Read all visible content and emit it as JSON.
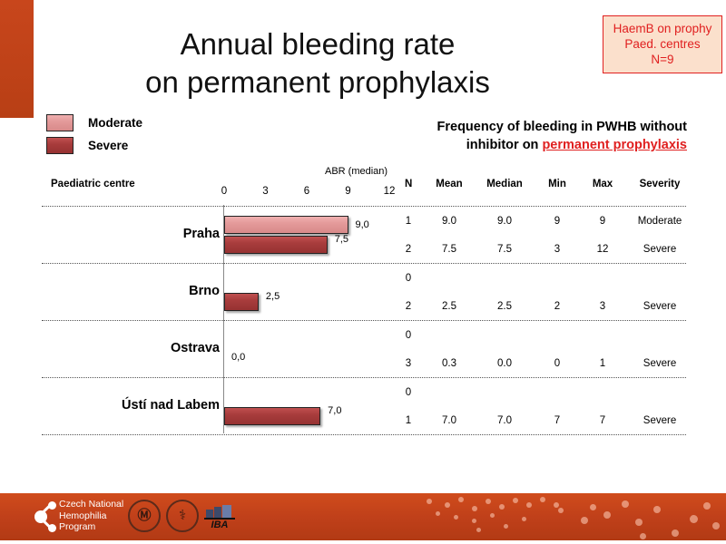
{
  "slide": {
    "title_line1": "Annual bleeding rate",
    "title_line2": "on permanent prophylaxis",
    "info_box": [
      "HaemB on prophy",
      "Paed. centres",
      "N=9"
    ],
    "subtitle_line1": "Frequency of bleeding in PWHB without",
    "subtitle_prefix": "inhibitor on ",
    "subtitle_highlight": "permanent prophylaxis",
    "accent_color": "#c8461c",
    "highlight_color": "#e02020"
  },
  "legend": [
    {
      "label": "Moderate",
      "color": "#e49a9a"
    },
    {
      "label": "Severe",
      "color": "#a83c3c"
    }
  ],
  "table": {
    "headers": {
      "centre": "Paediatric centre",
      "n": "N",
      "mean": "Mean",
      "median": "Median",
      "min": "Min",
      "max": "Max",
      "severity": "Severity"
    },
    "rows": [
      {
        "centre": "Praha",
        "lines": [
          {
            "n": "1",
            "mean": "9.0",
            "median": "9.0",
            "min": "9",
            "max": "9",
            "severity": "Moderate"
          },
          {
            "n": "2",
            "mean": "7.5",
            "median": "7.5",
            "min": "3",
            "max": "12",
            "severity": "Severe"
          }
        ]
      },
      {
        "centre": "Brno",
        "lines": [
          {
            "n": "0",
            "mean": "",
            "median": "",
            "min": "",
            "max": "",
            "severity": ""
          },
          {
            "n": "2",
            "mean": "2.5",
            "median": "2.5",
            "min": "2",
            "max": "3",
            "severity": "Severe"
          }
        ]
      },
      {
        "centre": "Ostrava",
        "lines": [
          {
            "n": "0",
            "mean": "",
            "median": "",
            "min": "",
            "max": "",
            "severity": ""
          },
          {
            "n": "3",
            "mean": "0.3",
            "median": "0.0",
            "min": "0",
            "max": "1",
            "severity": "Severe"
          }
        ]
      },
      {
        "centre": "Ústí nad Labem",
        "lines": [
          {
            "n": "0",
            "mean": "",
            "median": "",
            "min": "",
            "max": "",
            "severity": ""
          },
          {
            "n": "1",
            "mean": "7.0",
            "median": "7.0",
            "min": "7",
            "max": "7",
            "severity": "Severe"
          }
        ]
      }
    ]
  },
  "chart_data": {
    "type": "bar",
    "orientation": "horizontal",
    "title": "Annual bleeding rate on permanent prophylaxis",
    "xlabel": "ABR (median)",
    "ylabel": "Paediatric centre",
    "xlim": [
      0,
      12
    ],
    "x_ticks": [
      "0",
      "3",
      "6",
      "9",
      "12"
    ],
    "categories": [
      "Praha",
      "Brno",
      "Ostrava",
      "Ústí nad Labem"
    ],
    "series": [
      {
        "name": "Moderate",
        "values": [
          9.0,
          null,
          null,
          null
        ],
        "labels": [
          "9,0",
          "",
          "",
          ""
        ]
      },
      {
        "name": "Severe",
        "values": [
          7.5,
          2.5,
          0.0,
          7.0
        ],
        "labels": [
          "7,5",
          "2,5",
          "0,0",
          "7,0"
        ]
      }
    ],
    "legend_position": "top-left",
    "grid": false
  },
  "footer": {
    "org_name": [
      "Czech National",
      "Hemophilia",
      "Program"
    ],
    "logos": [
      "MU",
      "medical-faculty",
      "IBA"
    ],
    "iba_label": "IBA"
  }
}
